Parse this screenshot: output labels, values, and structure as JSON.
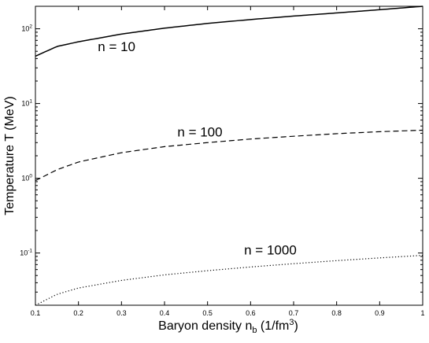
{
  "chart_data": {
    "type": "line",
    "xlabel": "Baryon density n",
    "xlabel_sub": "b",
    "xlabel_unit": "(1/fm",
    "xlabel_unit_sup": "3",
    "xlabel_unit_close": ")",
    "ylabel": "Temperature T (MeV)",
    "xlim": [
      0.1,
      1.0
    ],
    "ylim": [
      0.02,
      200
    ],
    "yscale": "log",
    "grid": false,
    "legend": "none",
    "x_ticks": [
      "0.1",
      "0.2",
      "0.3",
      "0.4",
      "0.5",
      "0.6",
      "0.7",
      "0.8",
      "0.9",
      "1"
    ],
    "y_ticks": [
      {
        "base": "10",
        "exp": "-1",
        "value": 0.1
      },
      {
        "base": "10",
        "exp": "0",
        "value": 1
      },
      {
        "base": "10",
        "exp": "1",
        "value": 10
      },
      {
        "base": "10",
        "exp": "2",
        "value": 100
      }
    ],
    "series": [
      {
        "name": "n = 10",
        "style": "solid",
        "x": [
          0.1,
          0.15,
          0.2,
          0.3,
          0.4,
          0.5,
          0.6,
          0.7,
          0.8,
          0.9,
          1.0
        ],
        "y": [
          43,
          58,
          67,
          85,
          102,
          118,
          133,
          148,
          163,
          180,
          200
        ]
      },
      {
        "name": "n = 100",
        "style": "dashed",
        "x": [
          0.1,
          0.15,
          0.2,
          0.3,
          0.4,
          0.5,
          0.6,
          0.7,
          0.8,
          0.9,
          1.0
        ],
        "y": [
          0.93,
          1.3,
          1.65,
          2.2,
          2.65,
          3.0,
          3.35,
          3.65,
          3.95,
          4.2,
          4.4
        ]
      },
      {
        "name": "n = 1000",
        "style": "dotted",
        "x": [
          0.1,
          0.15,
          0.2,
          0.3,
          0.4,
          0.5,
          0.6,
          0.7,
          0.8,
          0.9,
          1.0
        ],
        "y": [
          0.02,
          0.028,
          0.034,
          0.043,
          0.051,
          0.058,
          0.065,
          0.072,
          0.079,
          0.086,
          0.093
        ]
      }
    ]
  }
}
